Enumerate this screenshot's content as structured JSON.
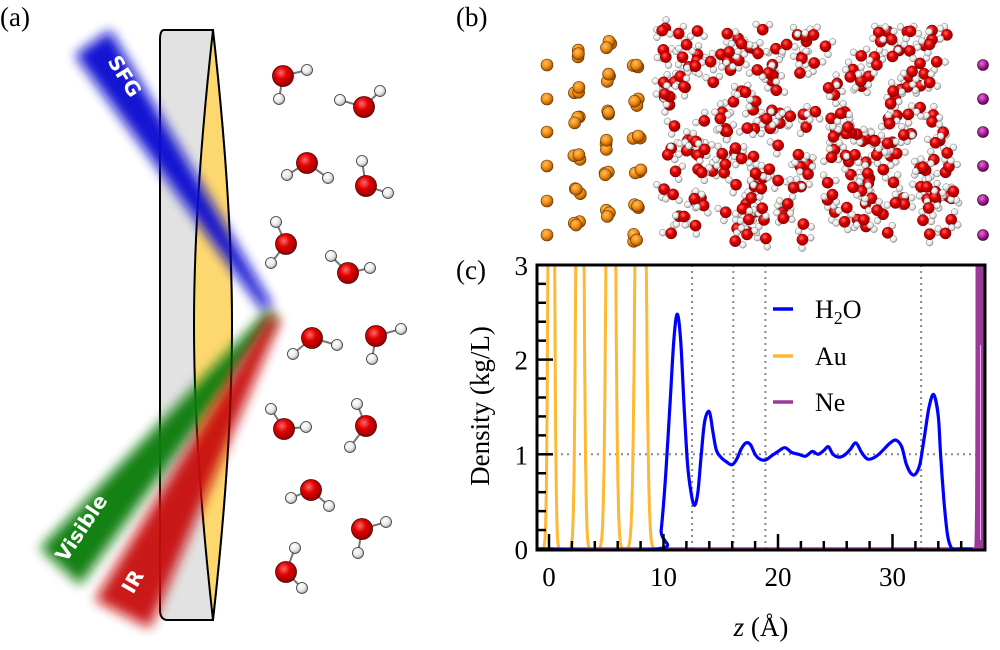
{
  "figure": {
    "panels": {
      "a": {
        "label": "(a)"
      },
      "b": {
        "label": "(b)"
      },
      "c": {
        "label": "(c)"
      }
    },
    "schematic": {
      "beams": [
        {
          "name": "SFG",
          "color": "#0a0ad2"
        },
        {
          "name": "Visible",
          "color": "#0f7d0f"
        },
        {
          "name": "IR",
          "color": "#c80a0a"
        }
      ],
      "substrate_color": "#e2e2e2",
      "gold_film_color": "#fdd86e",
      "oxygen_color": "#e00000",
      "hydrogen_color": "#f2f2f2"
    },
    "snapshot": {
      "species": [
        {
          "name": "Au",
          "color": "#f0901a"
        },
        {
          "name": "O",
          "color": "#e00000"
        },
        {
          "name": "H",
          "color": "#f0f0f0"
        },
        {
          "name": "Ne",
          "color": "#b0209a"
        }
      ]
    }
  },
  "chart_data": {
    "type": "line",
    "title": "",
    "xlabel": "z (Å)",
    "xlabel_italic_part": "z",
    "xlabel_rest": " (Å)",
    "ylabel": "Density (kg/L)",
    "xlim": [
      -1,
      38.2
    ],
    "ylim": [
      0,
      3
    ],
    "xticks": [
      0,
      10,
      20,
      30
    ],
    "xtick_labels": [
      "0",
      "10",
      "20",
      "30"
    ],
    "x_minor_step": 2,
    "yticks": [
      0,
      1,
      2,
      3
    ],
    "ytick_labels": [
      "0",
      "1",
      "2",
      "3"
    ],
    "y_minor_step": 0.2,
    "reference_hline": 1,
    "reference_vlines": [
      12.5,
      16.1,
      18.9,
      32.5
    ],
    "legend_position": "upper-right-center",
    "series": [
      {
        "name": "H2O",
        "label_main": "H",
        "label_sub": "2",
        "label_tail": "O",
        "color": "#0000ff",
        "x": [
          9.5,
          9.8,
          10.2,
          10.6,
          10.9,
          11.2,
          11.5,
          11.8,
          12.1,
          12.4,
          12.7,
          13.0,
          13.3,
          13.6,
          14.0,
          14.3,
          14.6,
          15.0,
          15.5,
          16.0,
          16.4,
          16.8,
          17.2,
          17.6,
          18.0,
          18.4,
          18.9,
          19.4,
          20.0,
          20.6,
          21.2,
          21.8,
          22.4,
          23.0,
          23.5,
          24.0,
          24.4,
          24.8,
          25.3,
          25.8,
          26.3,
          26.8,
          27.3,
          27.8,
          28.3,
          28.8,
          29.3,
          29.8,
          30.3,
          30.8,
          31.2,
          31.6,
          32.0,
          32.4,
          32.8,
          33.2,
          33.6,
          34.0,
          34.2,
          34.5,
          34.8,
          35.1,
          35.4,
          35.8
        ],
        "y": [
          0.0,
          0.2,
          0.8,
          1.6,
          2.2,
          2.48,
          2.2,
          1.5,
          0.9,
          0.6,
          0.46,
          0.6,
          1.0,
          1.35,
          1.45,
          1.25,
          1.05,
          0.97,
          0.92,
          0.89,
          0.95,
          1.06,
          1.12,
          1.1,
          1.0,
          0.95,
          0.94,
          0.98,
          1.03,
          1.07,
          1.02,
          1.0,
          0.98,
          1.03,
          1.0,
          1.04,
          1.08,
          1.0,
          0.97,
          0.99,
          1.05,
          1.12,
          1.02,
          0.95,
          0.96,
          1.0,
          1.06,
          1.12,
          1.15,
          1.08,
          0.9,
          0.8,
          0.79,
          0.9,
          1.2,
          1.5,
          1.63,
          1.4,
          1.0,
          0.5,
          0.15,
          0.02,
          0.0,
          0.0
        ]
      },
      {
        "name": "Au",
        "label_main": "Au",
        "color": "#ffb833",
        "peaks": [
          {
            "center": 0.2,
            "height": 12,
            "width": 0.18
          },
          {
            "center": 2.7,
            "height": 12,
            "width": 0.22
          },
          {
            "center": 5.4,
            "height": 12,
            "width": 0.26
          },
          {
            "center": 8.0,
            "height": 12,
            "width": 0.3
          }
        ]
      },
      {
        "name": "Ne",
        "label_main": "Ne",
        "color": "#9b3a9b",
        "peaks": [
          {
            "center": 37.6,
            "height": 40,
            "width": 0.08
          }
        ]
      }
    ]
  }
}
